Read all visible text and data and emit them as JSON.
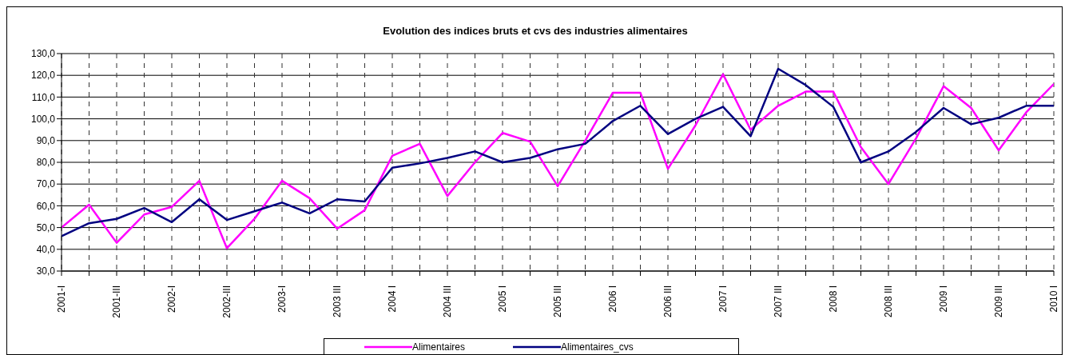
{
  "chart_data": {
    "type": "line",
    "title": "Evolution des indices bruts et cvs des industries alimentaires",
    "categories": [
      "2001-I",
      null,
      "2001-III",
      null,
      "2002-I",
      null,
      "2002-III",
      null,
      "2003-I",
      null,
      "2003 III",
      null,
      "2004 I",
      null,
      "2004 III",
      null,
      "2005 I",
      null,
      "2005 III",
      null,
      "2006 I",
      null,
      "2006 III",
      null,
      "2007 I",
      null,
      "2007 III",
      null,
      "2008 I",
      null,
      "2008 III",
      null,
      "2009 I",
      null,
      "2009 III",
      null,
      "2010 I"
    ],
    "series": [
      {
        "name": "Alimentaires",
        "color": "#ff00ff",
        "values": [
          50,
          60.5,
          43,
          56,
          59.5,
          71.5,
          40.5,
          54,
          71.5,
          63.5,
          49.5,
          58,
          83,
          88.5,
          64.5,
          80,
          93.5,
          89.5,
          69,
          90,
          112,
          112,
          77,
          97,
          120.5,
          95,
          106,
          112.5,
          112.5,
          87,
          70,
          91,
          115,
          105,
          85.5,
          103,
          116
        ]
      },
      {
        "name": "Alimentaires_cvs",
        "color": "#000080",
        "values": [
          46,
          52,
          54,
          59,
          52.5,
          63,
          53.5,
          57.5,
          61.5,
          56.5,
          63,
          62,
          77.5,
          79.5,
          82,
          85,
          80,
          82,
          86,
          88.5,
          99,
          106,
          93,
          100,
          105.5,
          92,
          123,
          115.5,
          105.5,
          80,
          85,
          94,
          105,
          97.5,
          100.5,
          106,
          106
        ]
      }
    ],
    "ylim": [
      30,
      130
    ],
    "yticks": [
      {
        "value": 30,
        "label": "30,0"
      },
      {
        "value": 40,
        "label": "40,0"
      },
      {
        "value": 50,
        "label": "50,0"
      },
      {
        "value": 60,
        "label": "60,0"
      },
      {
        "value": 70,
        "label": "70,0"
      },
      {
        "value": 80,
        "label": "80,0"
      },
      {
        "value": 90,
        "label": "90,0"
      },
      {
        "value": 100,
        "label": "100,0"
      },
      {
        "value": 110,
        "label": "110,0"
      },
      {
        "value": 120,
        "label": "120,0"
      },
      {
        "value": 130,
        "label": "130,0"
      }
    ],
    "grid": true,
    "legend": "bottom",
    "marker": "none",
    "line_style": "solid"
  }
}
